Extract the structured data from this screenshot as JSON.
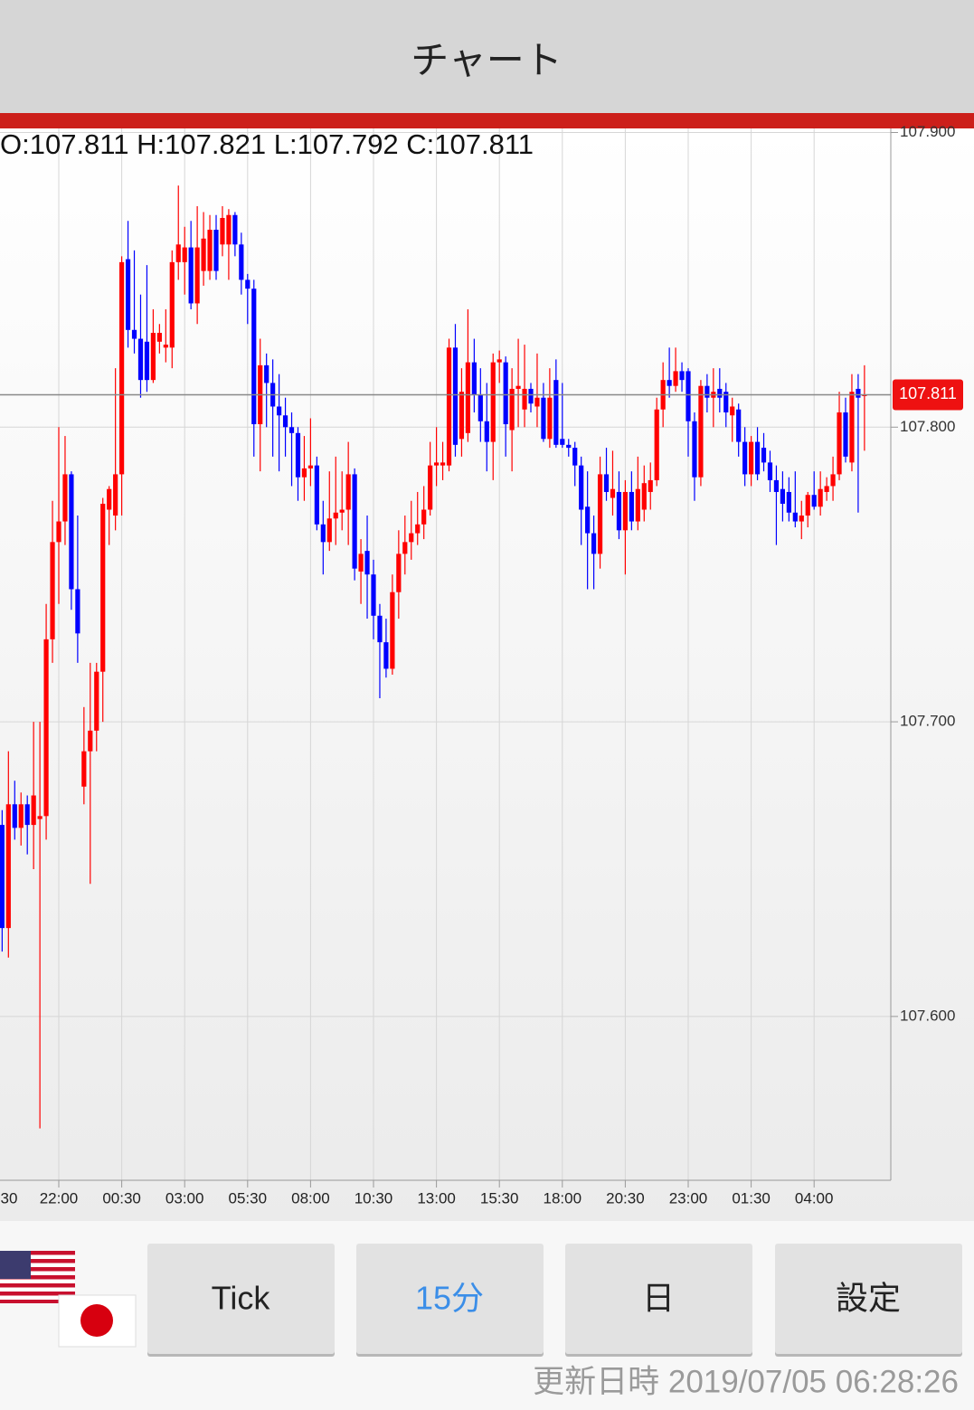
{
  "header": {
    "title": "チャート"
  },
  "chart_data": {
    "type": "candlestick",
    "ohlc_label": "O:107.811 H:107.821 L:107.792 C:107.811",
    "x": [
      "30",
      null,
      null,
      null,
      null,
      null,
      null,
      null,
      null,
      null,
      "22:00",
      null,
      null,
      null,
      null,
      null,
      null,
      null,
      null,
      null,
      "00:30",
      null,
      null,
      null,
      null,
      null,
      null,
      null,
      null,
      null,
      "03:00",
      null,
      null,
      null,
      null,
      null,
      null,
      null,
      null,
      null,
      "05:30",
      null,
      null,
      null,
      null,
      null,
      null,
      null,
      null,
      null,
      "08:00",
      null,
      null,
      null,
      null,
      null,
      null,
      null,
      null,
      null,
      "10:30",
      null,
      null,
      null,
      null,
      null,
      null,
      null,
      null,
      null,
      "13:00",
      null,
      null,
      null,
      null,
      null,
      null,
      null,
      null,
      null,
      "15:30",
      null,
      null,
      null,
      null,
      null,
      null,
      null,
      null,
      null,
      "18:00",
      null,
      null,
      null,
      null,
      null,
      null,
      null,
      null,
      null,
      "20:30",
      null,
      null,
      null,
      null,
      null,
      null,
      null,
      null,
      null,
      "23:00",
      null,
      null,
      null,
      null,
      null,
      null,
      null,
      null,
      null,
      "01:30",
      null,
      null,
      null,
      null,
      null,
      null,
      null,
      null,
      null,
      "04:00",
      null,
      null,
      null,
      null,
      null,
      null,
      null,
      null
    ],
    "ohlc": [
      null,
      [
        107.665,
        107.67,
        107.622,
        107.63
      ],
      [
        107.63,
        107.69,
        107.62,
        107.672
      ],
      [
        107.672,
        107.68,
        107.66,
        107.664
      ],
      [
        107.664,
        107.676,
        107.658,
        107.672
      ],
      [
        107.672,
        107.675,
        107.655,
        107.665
      ],
      [
        107.665,
        107.7,
        107.65,
        107.675
      ],
      [
        107.667,
        107.7,
        107.562,
        107.668
      ],
      [
        107.668,
        107.74,
        107.66,
        107.728
      ],
      [
        107.728,
        107.775,
        107.72,
        107.761
      ],
      [
        107.761,
        107.8,
        107.74,
        107.768
      ],
      [
        107.768,
        107.797,
        107.76,
        107.784
      ],
      [
        107.784,
        107.785,
        107.738,
        107.745
      ],
      [
        107.745,
        107.77,
        107.72,
        107.73
      ],
      [
        107.678,
        107.705,
        107.672,
        107.69
      ],
      [
        107.69,
        107.72,
        107.645,
        107.697
      ],
      [
        107.697,
        107.72,
        107.69,
        107.717
      ],
      [
        107.717,
        107.776,
        107.7,
        107.774
      ],
      [
        107.772,
        107.78,
        107.76,
        107.779
      ],
      [
        107.77,
        107.82,
        107.765,
        107.784
      ],
      [
        107.784,
        107.858,
        107.77,
        107.856
      ],
      [
        107.857,
        107.87,
        107.827,
        107.833
      ],
      [
        107.833,
        107.86,
        107.825,
        107.83
      ],
      [
        107.83,
        107.845,
        107.81,
        107.816
      ],
      [
        107.829,
        107.855,
        107.812,
        107.816
      ],
      [
        107.816,
        107.84,
        107.815,
        107.832
      ],
      [
        107.829,
        107.835,
        107.825,
        107.832
      ],
      [
        107.827,
        107.84,
        107.822,
        107.828
      ],
      [
        107.827,
        107.86,
        107.82,
        107.856
      ],
      [
        107.856,
        107.882,
        107.85,
        107.862
      ],
      [
        107.856,
        107.868,
        107.845,
        107.861
      ],
      [
        107.861,
        107.87,
        107.84,
        107.842
      ],
      [
        107.842,
        107.875,
        107.835,
        107.861
      ],
      [
        107.853,
        107.873,
        107.848,
        107.864
      ],
      [
        107.853,
        107.872,
        107.85,
        107.867
      ],
      [
        107.867,
        107.872,
        107.85,
        107.853
      ],
      [
        107.862,
        107.875,
        107.858,
        107.871
      ],
      [
        107.862,
        107.874,
        107.85,
        107.872
      ],
      [
        107.872,
        107.873,
        107.858,
        107.862
      ],
      [
        107.862,
        107.866,
        107.845,
        107.85
      ],
      [
        107.85,
        107.852,
        107.835,
        107.847
      ],
      [
        107.847,
        107.85,
        107.79,
        107.801
      ],
      [
        107.801,
        107.83,
        107.785,
        107.821
      ],
      [
        107.821,
        107.825,
        107.8,
        107.815
      ],
      [
        107.815,
        107.823,
        107.79,
        107.807
      ],
      [
        107.807,
        107.818,
        107.785,
        107.804
      ],
      [
        107.804,
        107.81,
        107.79,
        107.8
      ],
      [
        107.8,
        107.805,
        107.78,
        107.798
      ],
      [
        107.798,
        107.8,
        107.775,
        107.783
      ],
      [
        107.783,
        107.797,
        107.775,
        107.786
      ],
      [
        107.786,
        107.803,
        107.78,
        107.787
      ],
      [
        107.787,
        107.79,
        107.765,
        107.767
      ],
      [
        107.767,
        107.775,
        107.75,
        107.761
      ],
      [
        107.761,
        107.785,
        107.758,
        107.769
      ],
      [
        107.769,
        107.79,
        107.76,
        107.771
      ],
      [
        107.771,
        107.785,
        107.765,
        107.772
      ],
      [
        107.772,
        107.795,
        107.76,
        107.784
      ],
      [
        107.784,
        107.786,
        107.748,
        107.752
      ],
      [
        107.751,
        107.762,
        107.74,
        107.757
      ],
      [
        107.758,
        107.77,
        107.735,
        107.75
      ],
      [
        107.75,
        107.755,
        107.728,
        107.736
      ],
      [
        107.736,
        107.74,
        107.708,
        107.727
      ],
      [
        107.727,
        107.735,
        107.715,
        107.718
      ],
      [
        107.718,
        107.75,
        107.716,
        107.744
      ],
      [
        107.744,
        107.765,
        107.735,
        107.757
      ],
      [
        107.757,
        107.77,
        107.75,
        107.761
      ],
      [
        107.761,
        107.775,
        107.755,
        107.764
      ],
      [
        107.764,
        107.778,
        107.76,
        107.767
      ],
      [
        107.767,
        107.78,
        107.762,
        107.772
      ],
      [
        107.772,
        107.795,
        107.77,
        107.787
      ],
      [
        107.787,
        107.8,
        107.78,
        107.788
      ],
      [
        107.787,
        107.795,
        107.782,
        107.788
      ],
      [
        107.787,
        107.83,
        107.785,
        107.827
      ],
      [
        107.827,
        107.835,
        107.79,
        107.794
      ],
      [
        107.796,
        107.82,
        107.79,
        107.812
      ],
      [
        107.798,
        107.84,
        107.795,
        107.822
      ],
      [
        107.822,
        107.83,
        107.805,
        107.811
      ],
      [
        107.811,
        107.82,
        107.795,
        107.802
      ],
      [
        107.802,
        107.815,
        107.785,
        107.795
      ],
      [
        107.795,
        107.825,
        107.782,
        107.822
      ],
      [
        107.822,
        107.826,
        107.815,
        107.823
      ],
      [
        107.822,
        107.824,
        107.79,
        107.801
      ],
      [
        107.799,
        107.82,
        107.785,
        107.813
      ],
      [
        107.813,
        107.83,
        107.8,
        107.814
      ],
      [
        107.806,
        107.828,
        107.8,
        107.813
      ],
      [
        107.813,
        107.815,
        107.805,
        107.808
      ],
      [
        107.807,
        107.825,
        107.8,
        107.81
      ],
      [
        107.81,
        107.815,
        107.795,
        107.796
      ],
      [
        107.796,
        107.82,
        107.793,
        107.81
      ],
      [
        107.816,
        107.823,
        107.793,
        107.794
      ],
      [
        107.796,
        107.815,
        107.793,
        107.794
      ],
      [
        107.794,
        107.796,
        107.79,
        107.793
      ],
      [
        107.793,
        107.795,
        107.78,
        107.787
      ],
      [
        107.787,
        107.79,
        107.76,
        107.772
      ],
      [
        107.773,
        107.785,
        107.745,
        107.764
      ],
      [
        107.764,
        107.77,
        107.745,
        107.757
      ],
      [
        107.757,
        107.79,
        107.752,
        107.784
      ],
      [
        107.784,
        107.793,
        107.775,
        107.778
      ],
      [
        107.776,
        107.792,
        107.77,
        107.779
      ],
      [
        107.778,
        107.785,
        107.762,
        107.765
      ],
      [
        107.765,
        107.782,
        107.75,
        107.778
      ],
      [
        107.778,
        107.785,
        107.765,
        107.768
      ],
      [
        107.768,
        107.79,
        107.765,
        107.779
      ],
      [
        107.772,
        107.787,
        107.768,
        107.781
      ],
      [
        107.778,
        107.788,
        107.772,
        107.782
      ],
      [
        107.782,
        107.81,
        107.78,
        107.806
      ],
      [
        107.806,
        107.822,
        107.8,
        107.816
      ],
      [
        107.816,
        107.827,
        107.81,
        107.814
      ],
      [
        107.814,
        107.827,
        107.812,
        107.819
      ],
      [
        107.819,
        107.822,
        107.812,
        107.816
      ],
      [
        107.819,
        107.82,
        107.79,
        107.802
      ],
      [
        107.802,
        107.805,
        107.775,
        107.783
      ],
      [
        107.783,
        107.816,
        107.78,
        107.814
      ],
      [
        107.814,
        107.818,
        107.805,
        107.81
      ],
      [
        107.81,
        107.82,
        107.8,
        107.812
      ],
      [
        107.813,
        107.82,
        107.805,
        107.81
      ],
      [
        107.812,
        107.815,
        107.8,
        107.805
      ],
      [
        107.804,
        107.81,
        107.795,
        107.807
      ],
      [
        107.806,
        107.808,
        107.79,
        107.795
      ],
      [
        107.795,
        107.8,
        107.78,
        107.784
      ],
      [
        107.784,
        107.797,
        107.78,
        107.795
      ],
      [
        107.795,
        107.8,
        107.782,
        107.784
      ],
      [
        107.793,
        107.798,
        107.785,
        107.788
      ],
      [
        107.788,
        107.792,
        107.778,
        107.782
      ],
      [
        107.782,
        107.787,
        107.76,
        107.778
      ],
      [
        107.779,
        107.785,
        107.768,
        107.774
      ],
      [
        107.778,
        107.783,
        107.768,
        107.771
      ],
      [
        107.771,
        107.785,
        107.766,
        107.768
      ],
      [
        107.768,
        107.775,
        107.762,
        107.77
      ],
      [
        107.77,
        107.778,
        107.766,
        107.777
      ],
      [
        107.777,
        107.785,
        107.772,
        107.773
      ],
      [
        107.773,
        107.785,
        107.77,
        107.779
      ],
      [
        107.778,
        107.783,
        107.775,
        107.78
      ],
      [
        107.78,
        107.79,
        107.775,
        107.784
      ],
      [
        107.784,
        107.812,
        107.782,
        107.805
      ],
      [
        107.805,
        107.81,
        107.788,
        107.79
      ],
      [
        107.788,
        107.818,
        107.785,
        107.812
      ],
      [
        107.813,
        107.818,
        107.771,
        107.81
      ],
      [
        107.811,
        107.821,
        107.792,
        107.811
      ]
    ],
    "up_color": "#ff0000",
    "down_color": "#0000ff",
    "current_price": 107.811,
    "ylim": [
      107.549,
      107.902
    ],
    "yticks": [
      {
        "value": 107.9,
        "label": "107.900"
      },
      {
        "value": 107.8,
        "label": "107.800"
      },
      {
        "value": 107.7,
        "label": "107.700"
      },
      {
        "value": 107.6,
        "label": "107.600"
      }
    ],
    "grid": true
  },
  "buttons": [
    "Tick",
    "15分",
    "日",
    "設定"
  ],
  "footer": "更新日時 2019/07/05 06:28:26"
}
